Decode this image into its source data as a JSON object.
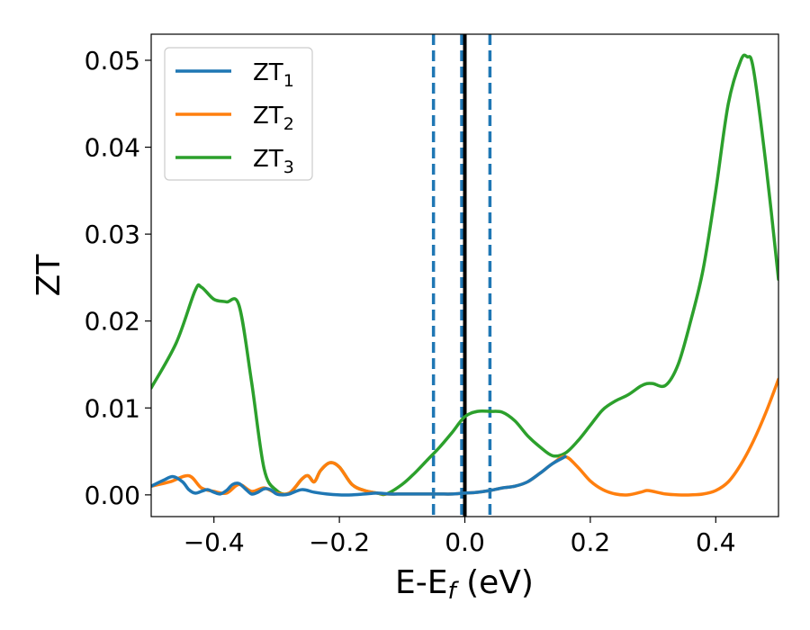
{
  "chart_data": {
    "type": "line",
    "title": "",
    "xlabel_parts": [
      "E-E",
      "f",
      " (eV)"
    ],
    "ylabel": "ZT",
    "xlim": [
      -0.5,
      0.5
    ],
    "ylim": [
      -0.0025,
      0.053
    ],
    "x_ticks": [
      -0.4,
      -0.2,
      0.0,
      0.2,
      0.4
    ],
    "x_tick_labels": [
      "−0.4",
      "−0.2",
      "0.0",
      "0.2",
      "0.4"
    ],
    "y_ticks": [
      0.0,
      0.01,
      0.02,
      0.03,
      0.04,
      0.05
    ],
    "y_tick_labels": [
      "0.00",
      "0.01",
      "0.02",
      "0.03",
      "0.04",
      "0.05"
    ],
    "grid": false,
    "legend_position": "top-left",
    "vertical_lines": [
      {
        "x": -0.05,
        "style": "dashed",
        "color": "#1f77b4"
      },
      {
        "x": -0.005,
        "style": "dashed",
        "color": "#1f77b4"
      },
      {
        "x": 0.04,
        "style": "dashed",
        "color": "#1f77b4"
      },
      {
        "x": 0.0,
        "style": "solid",
        "color": "#000000"
      }
    ],
    "series": [
      {
        "name_main": "ZT",
        "name_sub": "3",
        "color": "#2ca02c",
        "x": [
          -0.5,
          -0.46,
          -0.43,
          -0.42,
          -0.4,
          -0.38,
          -0.36,
          -0.34,
          -0.32,
          -0.3,
          -0.28,
          -0.26,
          -0.25,
          -0.24,
          -0.23,
          -0.215,
          -0.2,
          -0.18,
          -0.16,
          -0.14,
          -0.125,
          -0.1,
          -0.08,
          -0.06,
          -0.04,
          -0.02,
          0.0,
          0.02,
          0.04,
          0.06,
          0.08,
          0.1,
          0.12,
          0.14,
          0.16,
          0.18,
          0.2,
          0.22,
          0.24,
          0.26,
          0.28,
          0.29,
          0.3,
          0.32,
          0.34,
          0.36,
          0.38,
          0.4,
          0.42,
          0.44,
          0.45,
          0.46,
          0.48,
          0.5
        ],
        "y": [
          0.0123,
          0.0175,
          0.0235,
          0.0239,
          0.0225,
          0.0222,
          0.0218,
          0.013,
          0.003,
          0.0005,
          0.0002,
          0.0018,
          0.0022,
          0.0015,
          0.0028,
          0.0037,
          0.0032,
          0.0012,
          0.0005,
          0.0002,
          0.0001,
          0.0012,
          0.0025,
          0.004,
          0.0055,
          0.0072,
          0.009,
          0.0096,
          0.0096,
          0.0095,
          0.0085,
          0.0068,
          0.0055,
          0.0045,
          0.0048,
          0.0062,
          0.008,
          0.0098,
          0.0108,
          0.0115,
          0.0125,
          0.0128,
          0.0128,
          0.0126,
          0.015,
          0.02,
          0.026,
          0.035,
          0.045,
          0.05,
          0.0504,
          0.049,
          0.038,
          0.0248
        ]
      },
      {
        "name_main": "ZT",
        "name_sub": "2",
        "color": "#ff7f0e",
        "x": [
          -0.5,
          -0.47,
          -0.44,
          -0.42,
          -0.4,
          -0.38,
          -0.36,
          -0.34,
          -0.32,
          -0.3,
          -0.28,
          -0.26,
          -0.25,
          -0.24,
          -0.23,
          -0.215,
          -0.2,
          -0.18,
          -0.16,
          -0.14,
          -0.125,
          -0.1,
          -0.08,
          -0.06,
          -0.04,
          -0.02,
          0.0,
          0.02,
          0.04,
          0.06,
          0.08,
          0.1,
          0.12,
          0.14,
          0.16,
          0.18,
          0.2,
          0.22,
          0.24,
          0.26,
          0.28,
          0.29,
          0.3,
          0.32,
          0.34,
          0.36,
          0.38,
          0.4,
          0.42,
          0.44,
          0.46,
          0.48,
          0.5
        ],
        "y": [
          0.001,
          0.0015,
          0.0022,
          0.0008,
          0.0004,
          0.0002,
          0.0012,
          0.0004,
          0.0008,
          0.0002,
          0.0002,
          0.0018,
          0.0022,
          0.0015,
          0.0028,
          0.0037,
          0.0032,
          0.0012,
          0.0005,
          0.0002,
          0.0001,
          0.0001,
          0.0001,
          0.0001,
          0.0001,
          0.0001,
          0.0002,
          0.0003,
          0.0005,
          0.0008,
          0.001,
          0.0015,
          0.0025,
          0.0036,
          0.0044,
          0.0032,
          0.0016,
          0.0006,
          0.0001,
          0.0,
          0.0003,
          0.0005,
          0.0004,
          0.0001,
          0.0,
          0.0,
          0.0001,
          0.0005,
          0.0015,
          0.0035,
          0.0062,
          0.0095,
          0.0133
        ]
      },
      {
        "name_main": "ZT",
        "name_sub": "1",
        "color": "#1f77b4",
        "x": [
          -0.5,
          -0.48,
          -0.465,
          -0.45,
          -0.44,
          -0.43,
          -0.42,
          -0.41,
          -0.4,
          -0.39,
          -0.38,
          -0.37,
          -0.36,
          -0.35,
          -0.34,
          -0.33,
          -0.32,
          -0.31,
          -0.3,
          -0.29,
          -0.28,
          -0.26,
          -0.24,
          -0.22,
          -0.2,
          -0.18,
          -0.16,
          -0.14,
          -0.12,
          -0.1,
          -0.08,
          -0.06,
          -0.04,
          -0.02,
          0.0,
          0.02,
          0.04,
          0.06,
          0.08,
          0.1,
          0.12,
          0.14,
          0.16
        ],
        "y": [
          0.001,
          0.0017,
          0.0021,
          0.0015,
          0.0006,
          0.0002,
          0.0004,
          0.0006,
          0.0003,
          0.0001,
          0.0005,
          0.0012,
          0.0013,
          0.0007,
          0.0001,
          0.0003,
          0.0007,
          0.0006,
          0.0001,
          0.0,
          0.0001,
          0.0006,
          0.0003,
          0.0001,
          0.0,
          0.0,
          0.0001,
          0.0002,
          0.0001,
          0.0001,
          0.0001,
          0.0001,
          0.0001,
          0.0001,
          0.0002,
          0.0003,
          0.0005,
          0.0008,
          0.001,
          0.0015,
          0.0025,
          0.0036,
          0.0044
        ]
      }
    ],
    "legend": [
      {
        "name_main": "ZT",
        "name_sub": "1",
        "color": "#1f77b4"
      },
      {
        "name_main": "ZT",
        "name_sub": "2",
        "color": "#ff7f0e"
      },
      {
        "name_main": "ZT",
        "name_sub": "3",
        "color": "#2ca02c"
      }
    ]
  }
}
